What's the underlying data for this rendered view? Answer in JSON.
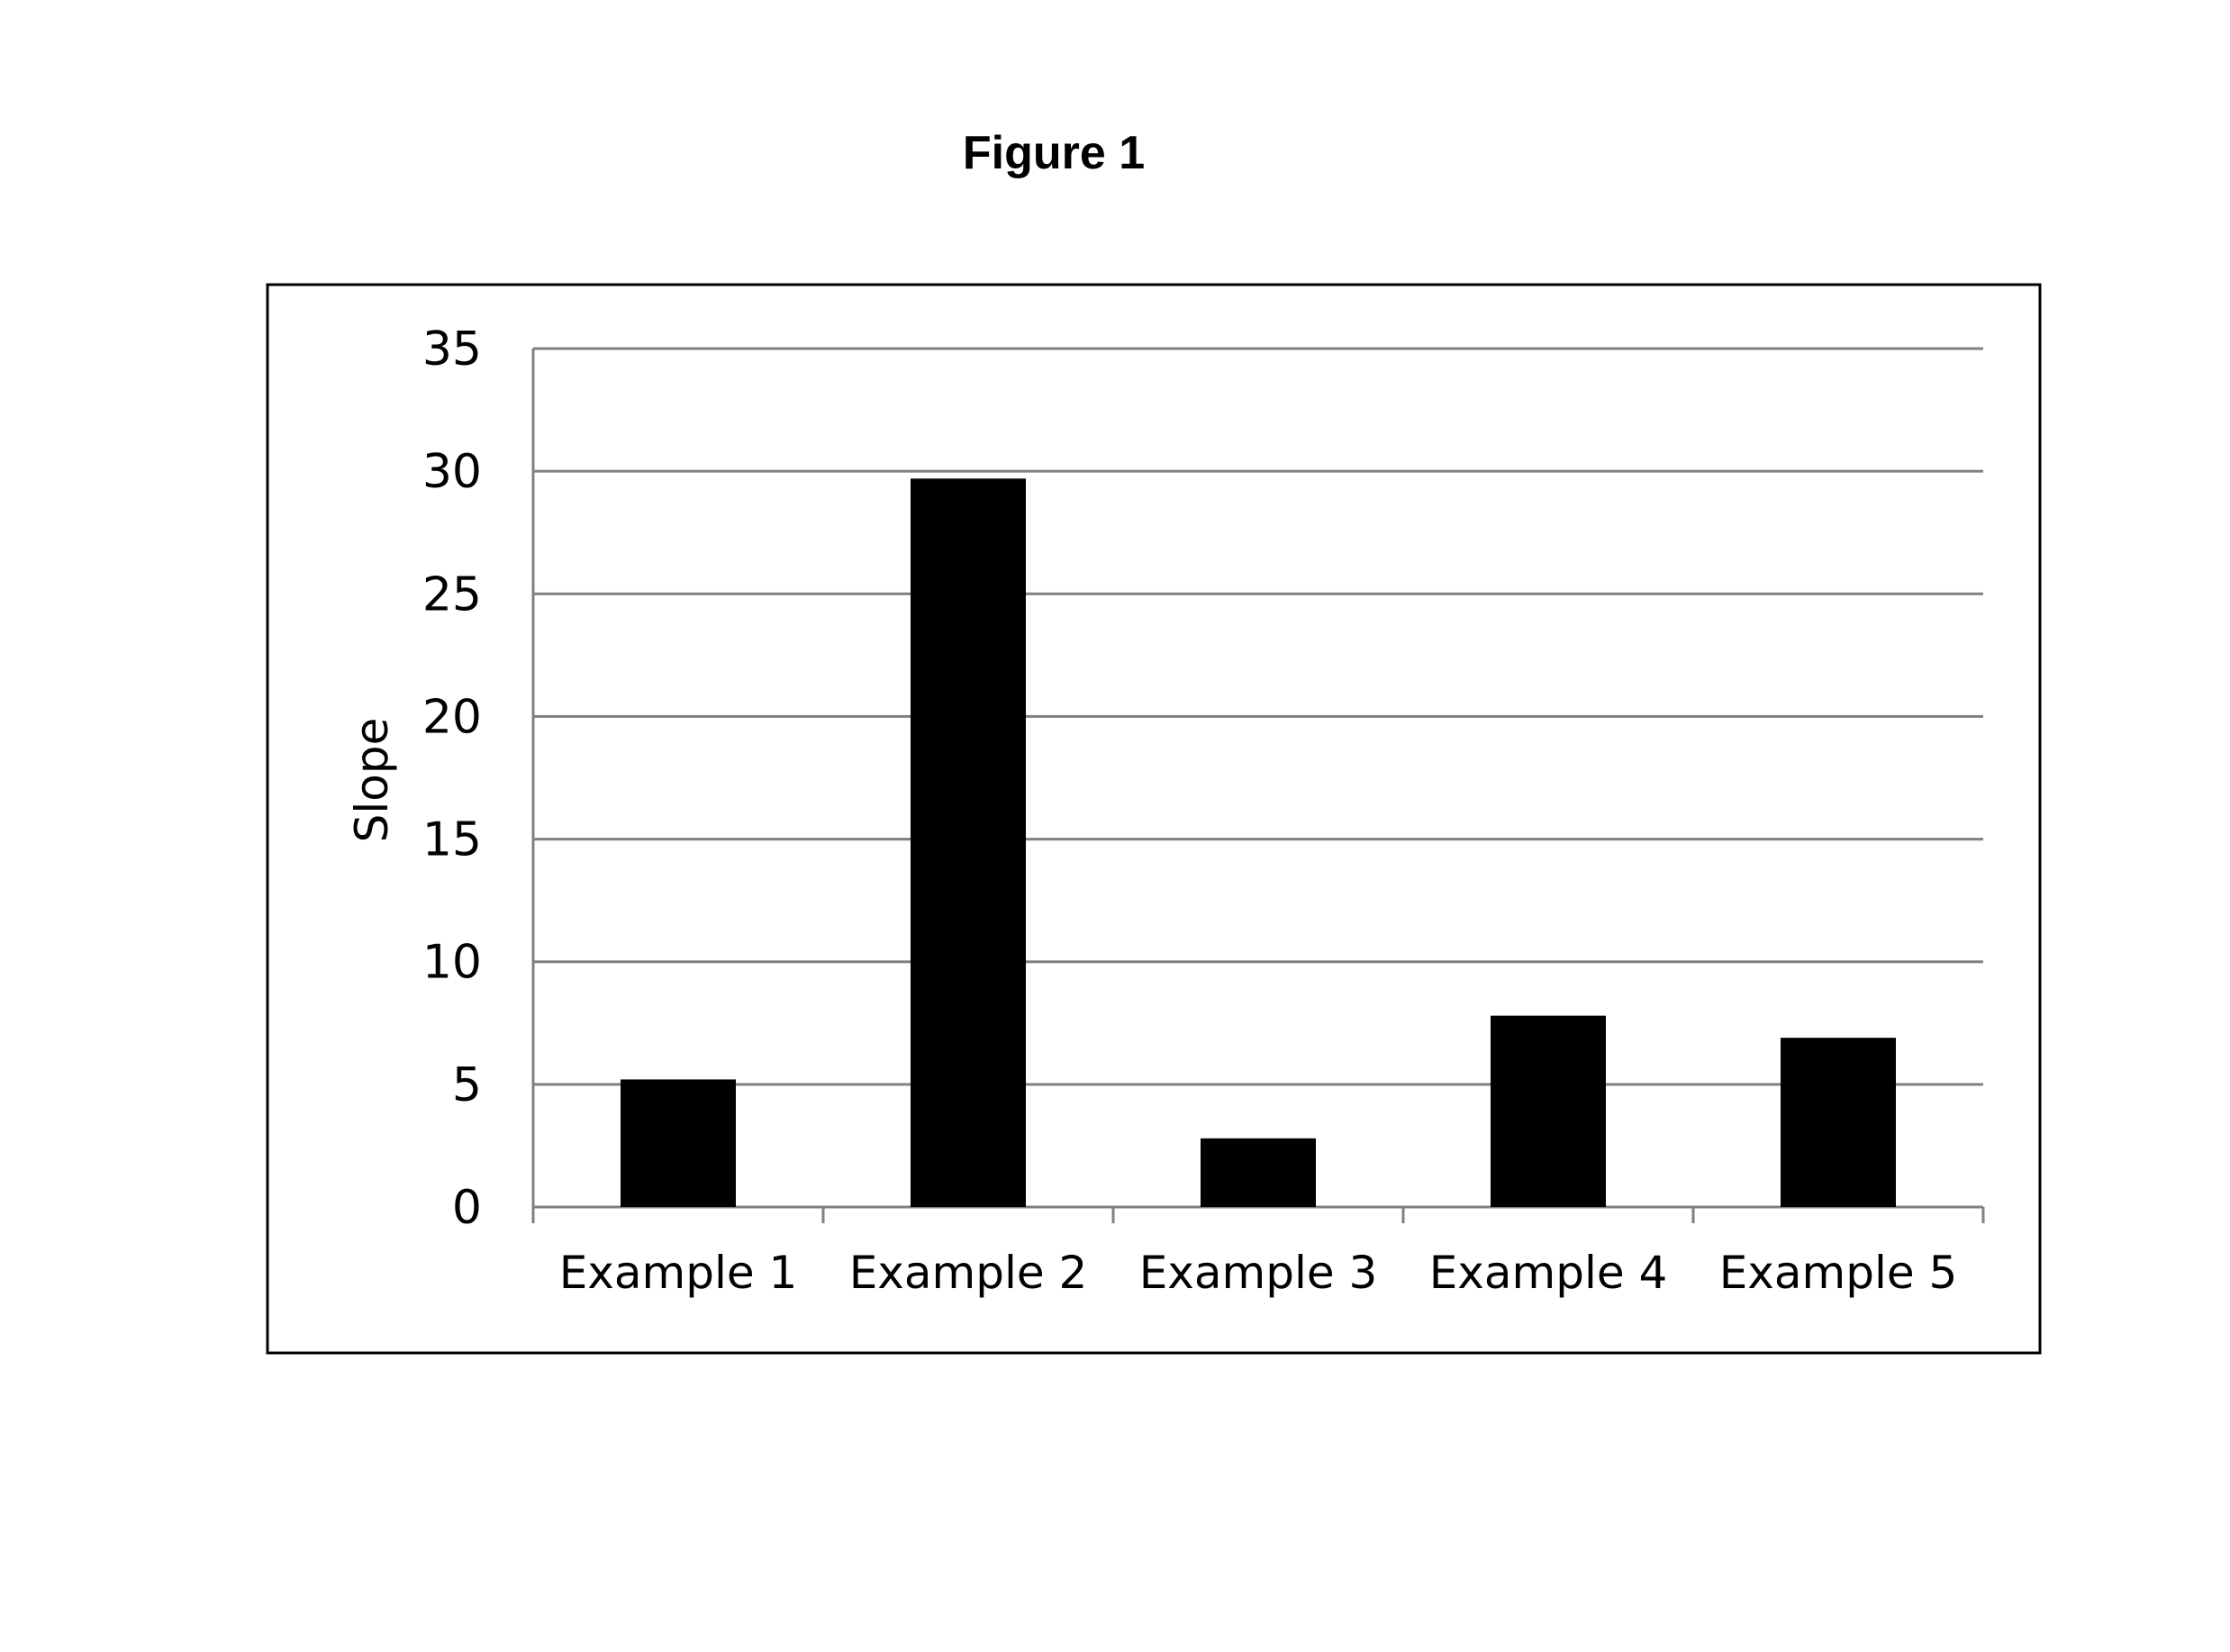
{
  "figure": {
    "title": "Figure 1"
  },
  "chart_data": {
    "type": "bar",
    "title": "",
    "xlabel": "",
    "ylabel": "Slope",
    "categories": [
      "Example 1",
      "Example 2",
      "Example 3",
      "Example 4",
      "Example 5"
    ],
    "values": [
      5.2,
      29.7,
      2.8,
      7.8,
      6.9
    ],
    "ylim": [
      0,
      35
    ],
    "yticks": [
      0,
      5,
      10,
      15,
      20,
      25,
      30,
      35
    ],
    "grid": true,
    "legend": "none",
    "colors": {
      "bar": "#000000",
      "grid": "#808080",
      "frame": "#000000"
    }
  }
}
